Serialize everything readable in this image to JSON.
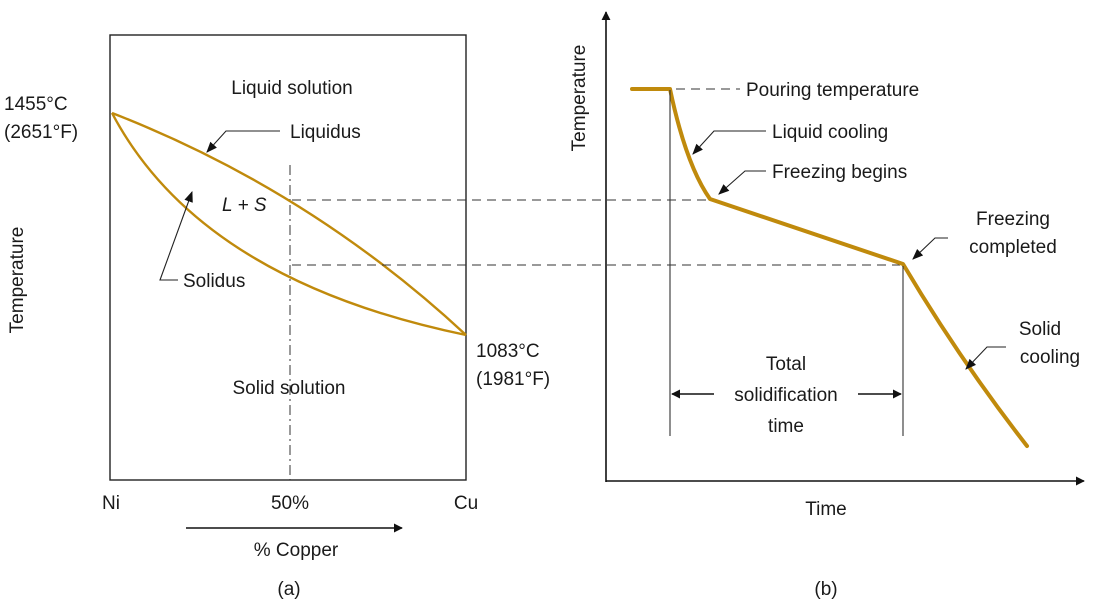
{
  "colors": {
    "curve": "#c08a0c",
    "ink": "#1a1a1a"
  },
  "panel_a": {
    "caption": "(a)",
    "y_axis_label": "Temperature",
    "x_axis_label": "% Copper",
    "ticks": {
      "left": "Ni",
      "mid": "50%",
      "right": "Cu"
    },
    "ni_temp_c": "1455°C",
    "ni_temp_f": "(2651°F)",
    "cu_temp_c": "1083°C",
    "cu_temp_f": "(1981°F)",
    "regions": {
      "liquid": "Liquid solution",
      "two_phase": "L + S",
      "solid": "Solid solution"
    },
    "curves": {
      "liquidus": "Liquidus",
      "solidus": "Solidus"
    }
  },
  "panel_b": {
    "caption": "(b)",
    "y_axis_label": "Temperature",
    "x_axis_label": "Time",
    "annotations": {
      "pouring": "Pouring temperature",
      "liquid_cooling": "Liquid cooling",
      "freezing_begins": "Freezing begins",
      "freezing_completed_1": "Freezing",
      "freezing_completed_2": "completed",
      "solid_cooling_1": "Solid",
      "solid_cooling_2": "cooling",
      "total_1": "Total",
      "total_2": "solidification",
      "total_3": "time"
    }
  }
}
